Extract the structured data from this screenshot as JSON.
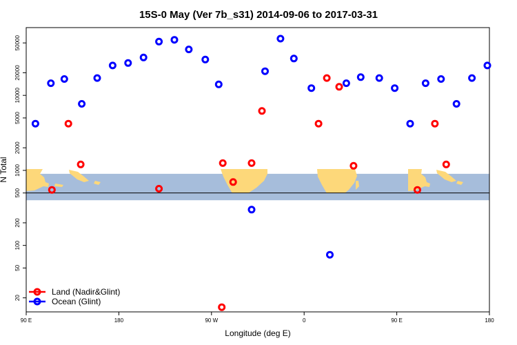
{
  "chart_data": {
    "type": "scatter",
    "title": "15S-0 May (Ver 7b_s31)   2014-09-06 to 2017-03-31",
    "xlabel": "Longitude (deg E)",
    "ylabel": "N Total",
    "y_scale": "log",
    "xlim": [
      90,
      540
    ],
    "ylim": [
      13,
      80000
    ],
    "x_ticks": [
      {
        "value": 90,
        "label": "90 E"
      },
      {
        "value": 180,
        "label": "180"
      },
      {
        "value": 270,
        "label": "90 W"
      },
      {
        "value": 360,
        "label": "0"
      },
      {
        "value": 450,
        "label": "90 E"
      },
      {
        "value": 540,
        "label": "180"
      }
    ],
    "y_ticks": [
      {
        "value": 20,
        "label": "20"
      },
      {
        "value": 50,
        "label": "50"
      },
      {
        "value": 100,
        "label": "100"
      },
      {
        "value": 200,
        "label": "200"
      },
      {
        "value": 500,
        "label": "500"
      },
      {
        "value": 1000,
        "label": "1000"
      },
      {
        "value": 2000,
        "label": "2000"
      },
      {
        "value": 5000,
        "label": "5000"
      },
      {
        "value": 10000,
        "label": "10000"
      },
      {
        "value": 20000,
        "label": "20000"
      },
      {
        "value": 50000,
        "label": "50000"
      }
    ],
    "reference_line": 500,
    "band": [
      400,
      900
    ],
    "band_color": "#a6bddb",
    "land_color": "#fdd87a",
    "series": [
      {
        "name": "Land (Nadir&Glint)",
        "color": "#ff0000",
        "points": [
          [
            115,
            550
          ],
          [
            131,
            4200
          ],
          [
            143,
            1200
          ],
          [
            219,
            570
          ],
          [
            280,
            15
          ],
          [
            281,
            1250
          ],
          [
            291,
            700
          ],
          [
            309,
            1250
          ],
          [
            319,
            6200
          ],
          [
            374,
            4200
          ],
          [
            382,
            17000
          ],
          [
            394,
            13000
          ],
          [
            408,
            1150
          ],
          [
            470,
            550
          ],
          [
            487,
            4200
          ],
          [
            498,
            1200
          ]
        ]
      },
      {
        "name": "Ocean (Glint)",
        "color": "#0000ff",
        "points": [
          [
            99,
            4200
          ],
          [
            114,
            14500
          ],
          [
            127,
            16500
          ],
          [
            144,
            7700
          ],
          [
            159,
            17000
          ],
          [
            174,
            25000
          ],
          [
            189,
            27000
          ],
          [
            204,
            32000
          ],
          [
            219,
            52000
          ],
          [
            234,
            55000
          ],
          [
            248,
            41000
          ],
          [
            264,
            30000
          ],
          [
            277,
            14000
          ],
          [
            309,
            300
          ],
          [
            322,
            21000
          ],
          [
            337,
            57000
          ],
          [
            350,
            31000
          ],
          [
            367,
            12500
          ],
          [
            385,
            75
          ],
          [
            401,
            14500
          ],
          [
            415,
            17500
          ],
          [
            433,
            17000
          ],
          [
            448,
            12500
          ],
          [
            463,
            4200
          ],
          [
            478,
            14500
          ],
          [
            493,
            16500
          ],
          [
            508,
            7700
          ],
          [
            523,
            17000
          ],
          [
            538,
            25000
          ]
        ]
      }
    ],
    "legend_position": "bottom-left"
  }
}
